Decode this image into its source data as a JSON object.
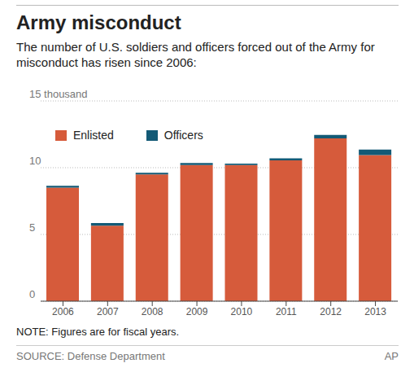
{
  "chart_data": {
    "type": "bar",
    "title": "Army misconduct",
    "subtitle": "The number of U.S. soldiers and officers forced out of the Army for misconduct has risen since 2006:",
    "note": "NOTE: Figures are for fiscal years.",
    "source": "SOURCE: Defense Department",
    "credit": "AP",
    "categories": [
      "2006",
      "2007",
      "2008",
      "2009",
      "2010",
      "2011",
      "2012",
      "2013"
    ],
    "series": [
      {
        "name": "Enlisted",
        "color": "#d65b3b",
        "values": [
          8.5,
          5.65,
          9.5,
          10.2,
          10.2,
          10.55,
          12.2,
          10.95
        ]
      },
      {
        "name": "Officers",
        "color": "#135a76",
        "values": [
          0.15,
          0.2,
          0.12,
          0.15,
          0.1,
          0.15,
          0.25,
          0.4
        ]
      }
    ],
    "stacked": true,
    "ylim": [
      0,
      15
    ],
    "yticks": [
      0,
      5,
      10,
      {
        "value": 15,
        "label": "15 thousand"
      }
    ],
    "grid": true,
    "legend": "upper left"
  }
}
